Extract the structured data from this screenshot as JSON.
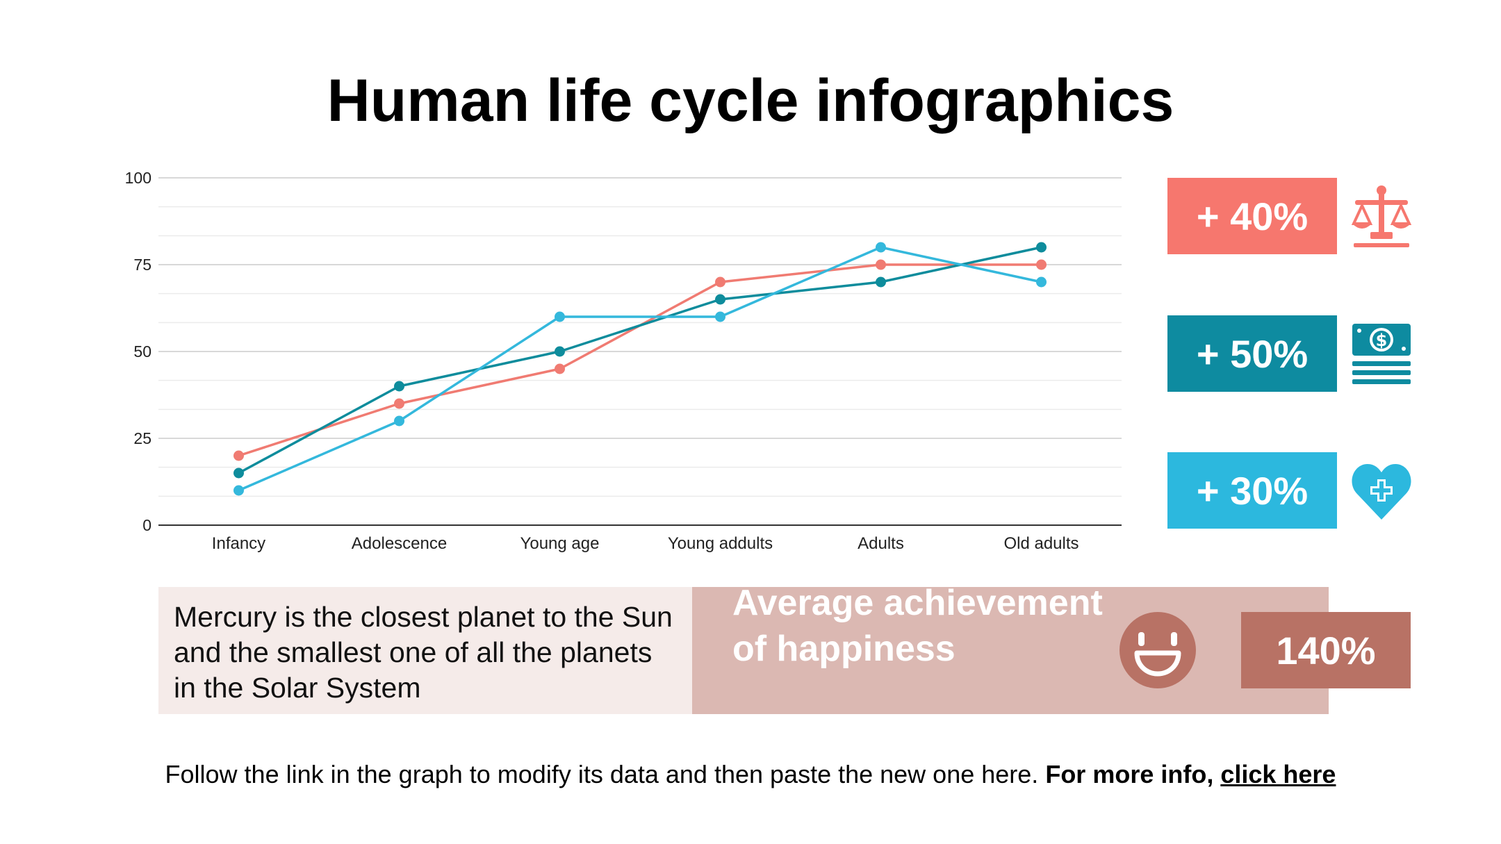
{
  "title": "Human life cycle infographics",
  "chart_data": {
    "type": "line",
    "categories": [
      "Infancy",
      "Adolescence",
      "Young age",
      "Young addults",
      "Adults",
      "Old adults"
    ],
    "series": [
      {
        "color": "#f07b72",
        "values": [
          20,
          35,
          45,
          70,
          75,
          75
        ]
      },
      {
        "color": "#0e8c9c",
        "values": [
          15,
          40,
          50,
          65,
          70,
          80
        ]
      },
      {
        "color": "#34b8dc",
        "values": [
          10,
          30,
          60,
          60,
          80,
          70
        ]
      }
    ],
    "ylim": [
      0,
      100
    ],
    "yticks": [
      0,
      25,
      50,
      75,
      100
    ],
    "grid": true,
    "legend": false,
    "xlabel": "",
    "ylabel": ""
  },
  "stats": [
    {
      "label": "+ 40%",
      "color": "#f6776e",
      "icon": "scales-icon"
    },
    {
      "label": "+ 50%",
      "color": "#0e8ba0",
      "icon": "money-icon"
    },
    {
      "label": "+ 30%",
      "color": "#2cb8de",
      "icon": "heart-plus-icon"
    }
  ],
  "description": "Mercury is the closest planet to the Sun and the smallest one of all the planets in the Solar System",
  "happiness": {
    "label": "Average achievement of happiness",
    "value": "140%",
    "icon": "smiley-icon",
    "panel_color": "#dbb8b2",
    "accent_color": "#b87265"
  },
  "footer": {
    "text": "Follow the link in the graph to modify its data and then paste the new one here.",
    "bold": "For more info,",
    "link": "click here"
  }
}
